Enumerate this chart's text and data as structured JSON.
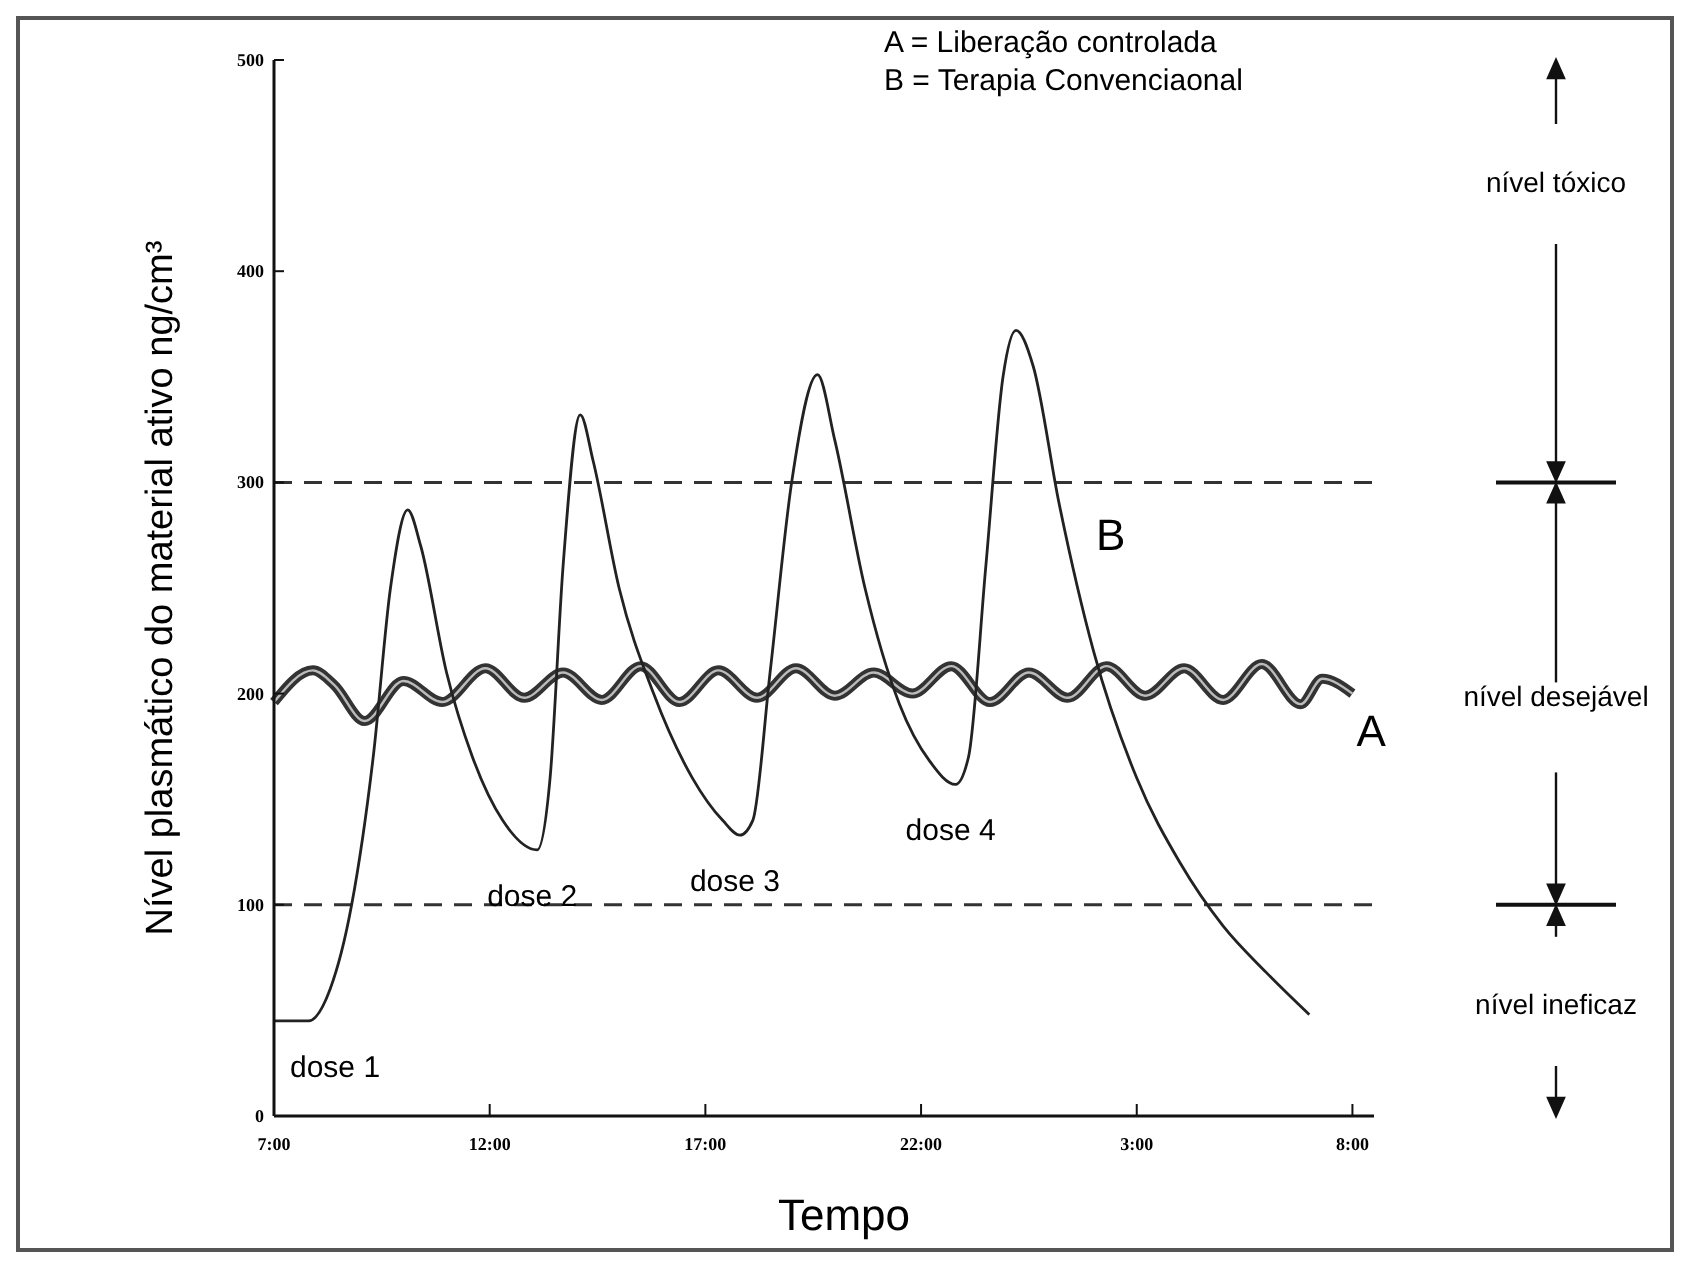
{
  "chart_data": {
    "type": "line",
    "xlabel": "Tempo",
    "ylabel": "Nível plasmático do material ativo ng/cm³",
    "xlim": [
      "2000-01-01T07:00",
      "2000-01-02T08:30"
    ],
    "ylim": [
      0,
      500
    ],
    "xticks": [
      {
        "value": "2000-01-01T07:00",
        "label": "7:00"
      },
      {
        "value": "2000-01-01T12:00",
        "label": "12:00"
      },
      {
        "value": "2000-01-01T17:00",
        "label": "17:00"
      },
      {
        "value": "2000-01-01T22:00",
        "label": "22:00"
      },
      {
        "value": "2000-01-02T03:00",
        "label": "3:00"
      },
      {
        "value": "2000-01-02T08:00",
        "label": "8:00"
      }
    ],
    "yticks": [
      0,
      100,
      200,
      300,
      400,
      500
    ],
    "grid": false,
    "marker": "none",
    "series": [
      {
        "name": "A",
        "color": "#333333",
        "x": [
          "2000-01-01T07:00",
          "2000-01-01T07:54",
          "2000-01-01T08:24",
          "2000-01-01T09:06",
          "2000-01-01T10:00",
          "2000-01-01T10:54",
          "2000-01-01T11:54",
          "2000-01-01T12:48",
          "2000-01-01T13:42",
          "2000-01-01T14:36",
          "2000-01-01T15:30",
          "2000-01-01T16:24",
          "2000-01-01T17:18",
          "2000-01-01T18:12",
          "2000-01-01T19:06",
          "2000-01-01T20:00",
          "2000-01-01T20:54",
          "2000-01-01T21:48",
          "2000-01-01T22:42",
          "2000-01-01T23:36",
          "2000-01-02T00:30",
          "2000-01-02T01:24",
          "2000-01-02T02:18",
          "2000-01-02T03:12",
          "2000-01-02T04:06",
          "2000-01-02T05:00",
          "2000-01-02T05:54",
          "2000-01-02T06:48",
          "2000-01-02T07:18",
          "2000-01-02T08:00"
        ],
        "values": [
          196,
          211,
          204,
          187,
          206,
          196,
          212,
          198,
          210,
          197,
          213,
          196,
          211,
          198,
          212,
          199,
          210,
          200,
          213,
          196,
          210,
          198,
          213,
          199,
          212,
          197,
          214,
          195,
          207,
          200
        ]
      },
      {
        "name": "B",
        "color": "#222222",
        "x": [
          "2000-01-01T07:00",
          "2000-01-01T07:48",
          "2000-01-01T08:18",
          "2000-01-01T08:48",
          "2000-01-01T09:18",
          "2000-01-01T09:42",
          "2000-01-01T10:06",
          "2000-01-01T10:24",
          "2000-01-01T11:00",
          "2000-01-01T11:36",
          "2000-01-01T12:18",
          "2000-01-01T13:06",
          "2000-01-01T13:24",
          "2000-01-01T13:42",
          "2000-01-01T14:06",
          "2000-01-01T14:24",
          "2000-01-01T15:00",
          "2000-01-01T15:48",
          "2000-01-01T16:42",
          "2000-01-01T17:24",
          "2000-01-01T17:48",
          "2000-01-01T18:06",
          "2000-01-01T18:30",
          "2000-01-01T19:00",
          "2000-01-01T19:36",
          "2000-01-01T20:00",
          "2000-01-01T20:42",
          "2000-01-01T21:30",
          "2000-01-01T22:12",
          "2000-01-01T22:48",
          "2000-01-01T23:06",
          "2000-01-01T23:30",
          "2000-01-01T23:54",
          "2000-01-02T00:12",
          "2000-01-02T00:36",
          "2000-01-02T01:12",
          "2000-01-02T02:00",
          "2000-01-02T03:00",
          "2000-01-02T04:00",
          "2000-01-02T05:00",
          "2000-01-02T06:00",
          "2000-01-02T07:00"
        ],
        "values": [
          45,
          45,
          60,
          100,
          170,
          250,
          287,
          270,
          210,
          170,
          140,
          126,
          160,
          260,
          332,
          310,
          250,
          200,
          160,
          140,
          133,
          140,
          210,
          300,
          351,
          320,
          250,
          195,
          168,
          157,
          170,
          260,
          350,
          372,
          355,
          290,
          220,
          160,
          120,
          90,
          68,
          48
        ]
      }
    ],
    "ref_lines": [
      {
        "axis": "y",
        "value": 300,
        "line_style": "dashed",
        "color": "#333333"
      },
      {
        "axis": "y",
        "value": 100,
        "line_style": "dashed",
        "color": "#333333"
      }
    ],
    "annotations": [
      "A = Liberação controlada",
      "B = Terapia Convenciaonal",
      "nível tóxico",
      "nível desejável",
      "nível ineficaz",
      {
        "text": "dose 1",
        "x": "2000-01-01T08:00",
        "y": 45
      },
      {
        "text": "dose 2",
        "x": "2000-01-01T13:06",
        "y": 126
      },
      {
        "text": "dose 3",
        "x": "2000-01-01T17:48",
        "y": 133
      },
      {
        "text": "dose 4",
        "x": "2000-01-01T22:48",
        "y": 157
      }
    ]
  }
}
